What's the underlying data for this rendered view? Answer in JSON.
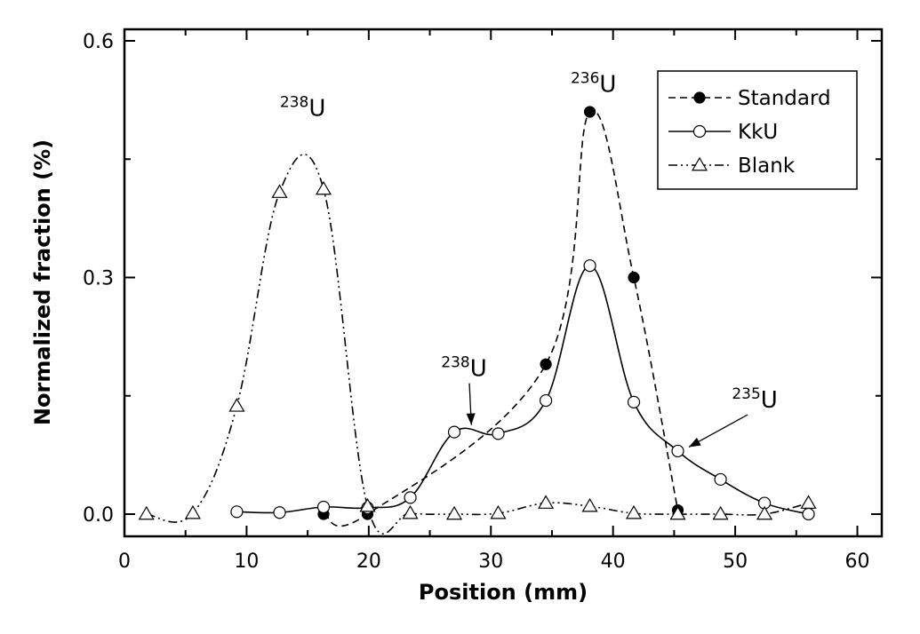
{
  "chart_data": {
    "type": "line",
    "xlabel": "Position (mm)",
    "ylabel": "Normalized fraction (%)",
    "xlim": [
      0,
      62
    ],
    "ylim": [
      -0.02,
      0.6
    ],
    "xticks": [
      "0",
      "10",
      "20",
      "30",
      "40",
      "50",
      "60"
    ],
    "yticks": [
      "0.0",
      "0.3",
      "0.6"
    ],
    "grid": false,
    "legend_position": "top-right",
    "series": [
      {
        "name": "Standard",
        "marker": "filled-circle",
        "line_style": "dashed",
        "x": [
          16.3,
          19.9,
          34.5,
          38.1,
          41.7,
          45.3
        ],
        "y": [
          0.0,
          0.0,
          0.19,
          0.51,
          0.3,
          0.005
        ]
      },
      {
        "name": "KkU",
        "marker": "open-circle",
        "line_style": "solid",
        "x": [
          9.2,
          12.7,
          16.3,
          19.9,
          23.4,
          27.0,
          30.6,
          34.5,
          38.1,
          41.7,
          45.3,
          48.8,
          52.4,
          56.0
        ],
        "y": [
          0.003,
          0.002,
          0.009,
          0.008,
          0.021,
          0.104,
          0.102,
          0.144,
          0.315,
          0.142,
          0.08,
          0.044,
          0.014,
          0.0
        ]
      },
      {
        "name": "Blank",
        "marker": "open-triangle",
        "line_style": "dash-dot-dot",
        "x": [
          1.8,
          5.6,
          9.2,
          12.7,
          16.3,
          19.9,
          23.4,
          27.0,
          30.6,
          34.5,
          38.1,
          41.7,
          45.3,
          48.8,
          52.4,
          56.0
        ],
        "y": [
          0.0,
          0.001,
          0.137,
          0.408,
          0.412,
          0.01,
          0.001,
          0.0,
          0.001,
          0.014,
          0.01,
          0.001,
          0.0,
          0.0,
          0.0,
          0.014
        ]
      }
    ],
    "annotations": [
      {
        "base": "U",
        "sup": "238",
        "x": 14.6,
        "y": 0.505,
        "arrow": false
      },
      {
        "base": "U",
        "sup": "236",
        "x": 38.4,
        "y": 0.535,
        "arrow": false
      },
      {
        "base": "U",
        "sup": "238",
        "x": 27.8,
        "y": 0.175,
        "arrow": true,
        "arrow_to": [
          28.4,
          0.113
        ]
      },
      {
        "base": "U",
        "sup": "235",
        "x": 51.6,
        "y": 0.135,
        "arrow": true,
        "arrow_to": [
          46.2,
          0.085
        ]
      }
    ]
  }
}
